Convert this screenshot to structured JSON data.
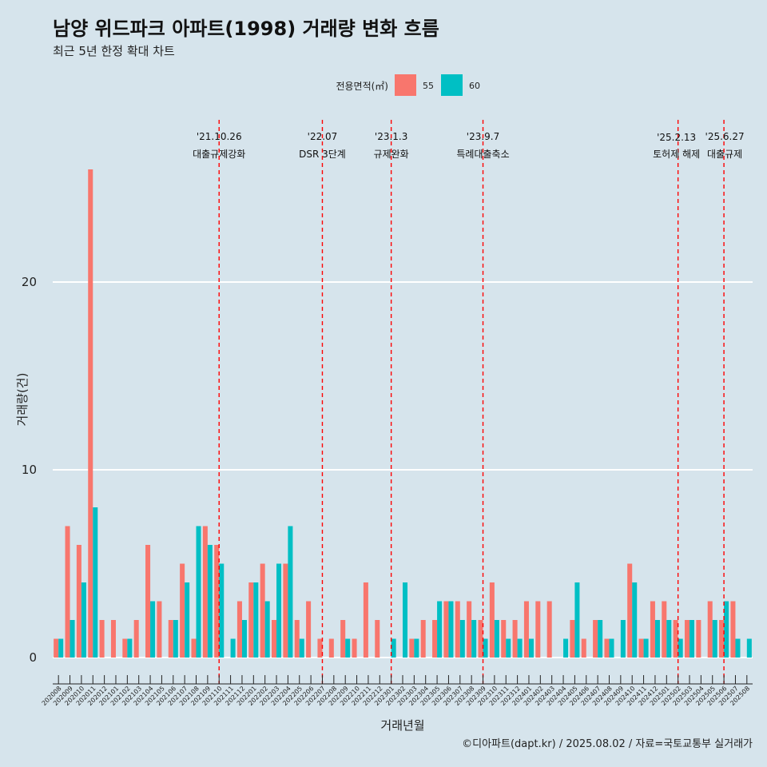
{
  "chart_data": {
    "type": "bar",
    "title": "남양 위드파크 아파트(1998) 거래량 변화 흐름",
    "subtitle": "최근 5년 한정 확대 차트",
    "xlabel": "거래년월",
    "ylabel": "거래량(건)",
    "ylim": [
      0,
      26
    ],
    "yticks": [
      "0",
      "10",
      "20"
    ],
    "legend": {
      "title": "전용면적(㎡)",
      "placement": "top",
      "entries": [
        {
          "label": "55",
          "color": "#f8766d"
        },
        {
          "label": "60",
          "color": "#00bfc4"
        }
      ]
    },
    "categories": [
      "202008",
      "202009",
      "202010",
      "202011",
      "202012",
      "202101",
      "202102",
      "202103",
      "202104",
      "202105",
      "202106",
      "202107",
      "202108",
      "202109",
      "202110",
      "202111",
      "202112",
      "202201",
      "202202",
      "202203",
      "202204",
      "202205",
      "202206",
      "202207",
      "202208",
      "202209",
      "202210",
      "202211",
      "202212",
      "202301",
      "202302",
      "202303",
      "202304",
      "202305",
      "202306",
      "202307",
      "202308",
      "202309",
      "202310",
      "202311",
      "202312",
      "202401",
      "202402",
      "202403",
      "202404",
      "202405",
      "202406",
      "202407",
      "202408",
      "202409",
      "202410",
      "202411",
      "202412",
      "202501",
      "202502",
      "202503",
      "202504",
      "202505",
      "202506",
      "202507",
      "202508"
    ],
    "series": [
      {
        "name": "55",
        "color": "#f8766d",
        "values": [
          1,
          7,
          6,
          26,
          2,
          2,
          1,
          2,
          6,
          3,
          2,
          5,
          1,
          7,
          6,
          0,
          3,
          4,
          5,
          2,
          5,
          2,
          3,
          1,
          1,
          2,
          1,
          4,
          2,
          0,
          0,
          1,
          2,
          2,
          3,
          3,
          3,
          2,
          4,
          2,
          2,
          3,
          3,
          3,
          0,
          2,
          1,
          2,
          1,
          0,
          5,
          1,
          3,
          3,
          2,
          2,
          2,
          3,
          2,
          3,
          0
        ]
      },
      {
        "name": "60",
        "color": "#00bfc4",
        "values": [
          1,
          2,
          4,
          8,
          0,
          0,
          1,
          0,
          3,
          0,
          2,
          4,
          7,
          6,
          5,
          1,
          2,
          4,
          3,
          5,
          7,
          1,
          0,
          0,
          0,
          1,
          0,
          0,
          0,
          1,
          4,
          1,
          0,
          3,
          3,
          2,
          2,
          1,
          2,
          1,
          1,
          1,
          0,
          0,
          1,
          4,
          0,
          2,
          1,
          2,
          4,
          1,
          2,
          2,
          1,
          2,
          0,
          2,
          3,
          1,
          1
        ]
      }
    ],
    "events": [
      {
        "date": "'21.10.26",
        "label": "대출규제강화",
        "month": "202110"
      },
      {
        "date": "'22.07",
        "label": "DSR 3단계",
        "month": "202207"
      },
      {
        "date": "'23.1.3",
        "label": "규제완화",
        "month": "202301"
      },
      {
        "date": "'23.9.7",
        "label": "특례대출축소",
        "month": "202309"
      },
      {
        "date": "'25.2.13",
        "label": "토허제 해제",
        "month": "202502"
      },
      {
        "date": "'25.6.27",
        "label": "대출규제",
        "month": "202506"
      }
    ],
    "caption": "©디아파트(dapt.kr) / 2025.08.02 / 자료=국토교통부 실거래가"
  }
}
